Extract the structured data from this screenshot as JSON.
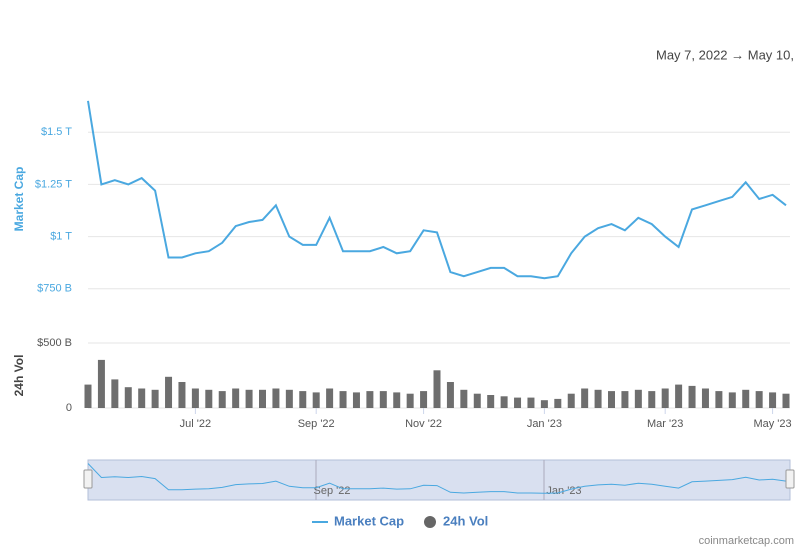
{
  "header": {
    "date_range": "May 7, 2022 → May 10,"
  },
  "chart_data": [
    {
      "type": "line",
      "y_label": "Market Cap",
      "series": [
        {
          "name": "Market Cap",
          "color": "#4aa8e0",
          "values": [
            1650,
            1250,
            1270,
            1250,
            1280,
            1220,
            900,
            900,
            920,
            930,
            970,
            1050,
            1070,
            1080,
            1150,
            1000,
            960,
            960,
            1090,
            930,
            930,
            930,
            950,
            920,
            930,
            1030,
            1020,
            830,
            810,
            830,
            850,
            850,
            810,
            810,
            800,
            810,
            920,
            1000,
            1040,
            1060,
            1030,
            1090,
            1060,
            1000,
            950,
            1130,
            1150,
            1170,
            1190,
            1260,
            1180,
            1200,
            1150
          ]
        }
      ],
      "ylim": [
        610,
        1750
      ],
      "yticks": [
        {
          "value": 750,
          "label": "$750 B"
        },
        {
          "value": 1000,
          "label": "$1 T"
        },
        {
          "value": 1250,
          "label": "$1.25 T"
        },
        {
          "value": 1500,
          "label": "$1.5 T"
        }
      ],
      "grid": true
    },
    {
      "type": "bar",
      "y_label": "24h Vol",
      "categories": [
        null,
        null,
        null,
        null,
        null,
        null,
        null,
        null,
        "Jul '22",
        null,
        null,
        null,
        null,
        null,
        null,
        null,
        null,
        "Sep '22",
        null,
        null,
        null,
        null,
        null,
        null,
        null,
        "Nov '22",
        null,
        null,
        null,
        null,
        null,
        null,
        null,
        null,
        "Jan '23",
        null,
        null,
        null,
        null,
        null,
        null,
        null,
        null,
        "Mar '23",
        null,
        null,
        null,
        null,
        null,
        null,
        null,
        "May '23",
        null
      ],
      "series": [
        {
          "name": "24h Vol",
          "color": "#555555",
          "values": [
            180,
            370,
            220,
            160,
            150,
            140,
            240,
            200,
            150,
            140,
            130,
            150,
            140,
            140,
            150,
            140,
            130,
            120,
            150,
            130,
            120,
            130,
            130,
            120,
            110,
            130,
            290,
            200,
            140,
            110,
            100,
            90,
            80,
            80,
            60,
            70,
            110,
            150,
            140,
            130,
            130,
            140,
            130,
            150,
            180,
            170,
            150,
            130,
            120,
            140,
            130,
            120,
            110
          ]
        }
      ],
      "ylim": [
        0,
        500
      ],
      "yticks": [
        0,
        {
          "value": 500,
          "label": "$500 B"
        }
      ],
      "grid": true
    }
  ],
  "navigator": {
    "labels": [
      "Sep '22",
      "Jan '23"
    ]
  },
  "footer": "coinmarketcap.com"
}
